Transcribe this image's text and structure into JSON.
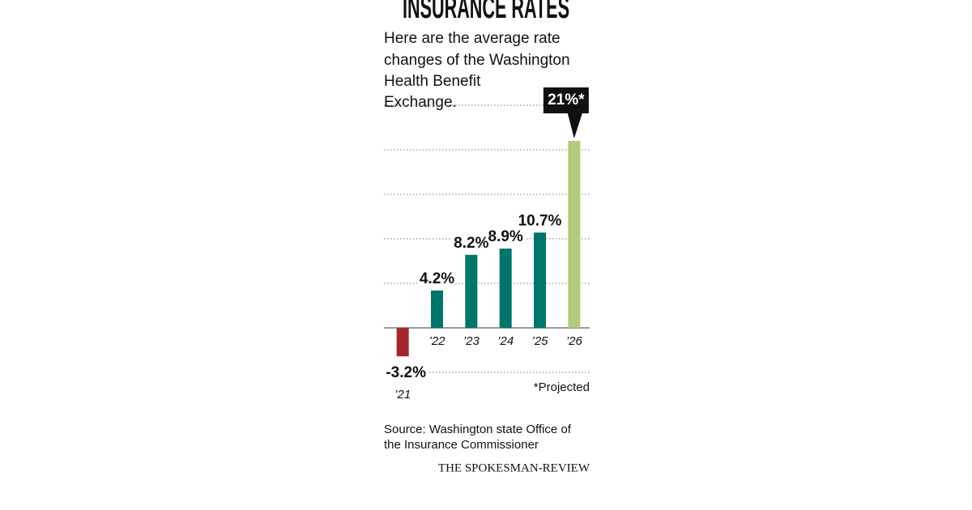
{
  "chart_data": {
    "type": "bar",
    "title": "INSURANCE RATES",
    "subtitle": [
      "Here are the average rate",
      "changes of the Washington",
      "Health Benefit",
      "Exchange."
    ],
    "categories": [
      "’21",
      "’22",
      "’23",
      "’24",
      "’25",
      "’26"
    ],
    "values": [
      -3.2,
      4.2,
      8.2,
      8.9,
      10.7,
      21
    ],
    "value_labels": [
      "-3.2%",
      "4.2%",
      "8.2%",
      "8.9%",
      "10.7%",
      "21%*"
    ],
    "colors": [
      "#a3262f",
      "#00756a",
      "#00756a",
      "#00756a",
      "#00756a",
      "#b1cc7a"
    ],
    "ylim": [
      -5,
      25
    ],
    "yticks": [
      -5,
      5,
      10,
      15,
      20,
      25
    ],
    "grid": true,
    "note": "*Projected",
    "source": [
      "Source: Washington state Office of",
      "the Insurance Commissioner"
    ],
    "credit": "THE SPOKESMAN-REVIEW"
  }
}
